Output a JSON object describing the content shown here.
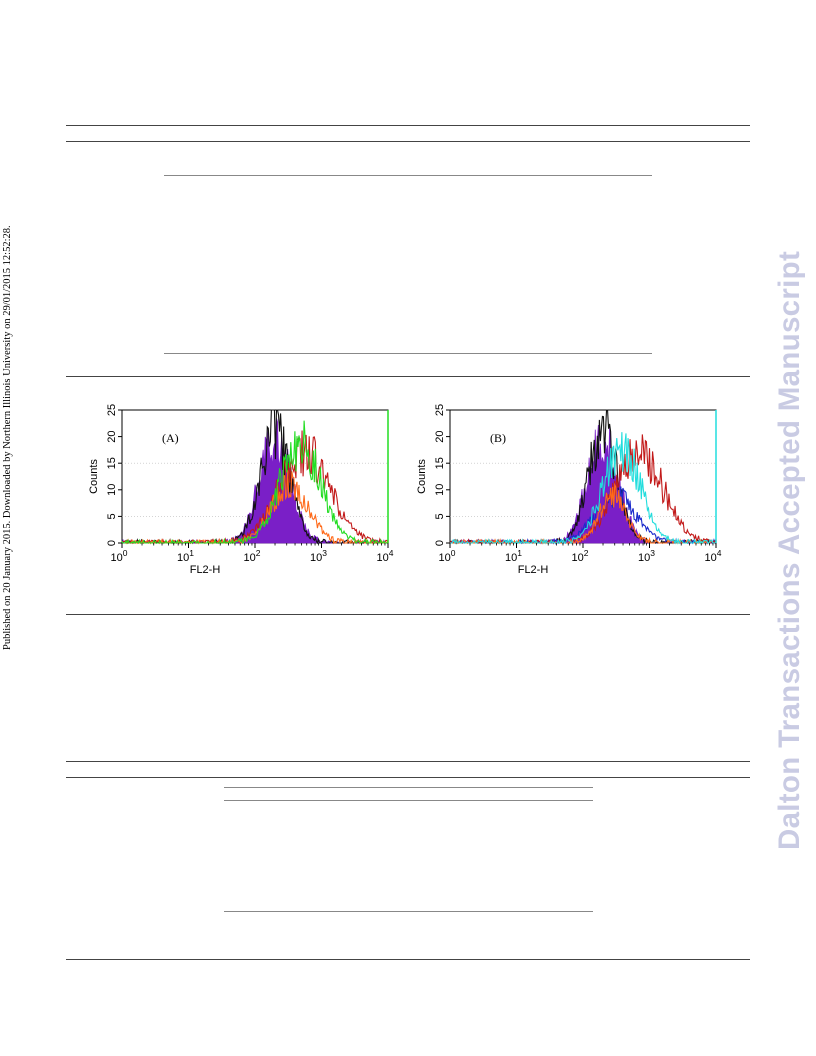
{
  "side_note": "Published on 20 January 2015. Downloaded by Northern Illinois University on 29/01/2015 12:52:28.",
  "watermark": "Dalton Transactions Accepted Manuscript",
  "chart_data": [
    {
      "type": "area",
      "panel_label": "(A)",
      "xlabel": "FL2-H",
      "ylabel": "Counts",
      "xscale": "log",
      "xlim": [
        1,
        10000
      ],
      "ylim": [
        0,
        25
      ],
      "xticks": [
        {
          "value": 1,
          "base": "10",
          "exp": "0"
        },
        {
          "value": 10,
          "base": "10",
          "exp": "1"
        },
        {
          "value": 100,
          "base": "10",
          "exp": "2"
        },
        {
          "value": 1000,
          "base": "10",
          "exp": "3"
        },
        {
          "value": 10000,
          "base": "10",
          "exp": "4"
        }
      ],
      "yticks": [
        {
          "value": 0,
          "label": "0"
        },
        {
          "value": 5,
          "label": "5"
        },
        {
          "value": 10,
          "label": "10"
        },
        {
          "value": 15,
          "label": "15"
        },
        {
          "value": 20,
          "label": "20"
        },
        {
          "value": 25,
          "label": "25"
        }
      ],
      "series": [
        {
          "color": "#7a1fc7",
          "fill": true,
          "center": 200,
          "spread": 0.24,
          "peak": 19
        },
        {
          "color": "#111111",
          "fill": false,
          "center": 200,
          "spread": 0.22,
          "peak": 21
        },
        {
          "color": "#c21a1a",
          "fill": false,
          "center": 550,
          "spread": 0.38,
          "peak": 17
        },
        {
          "color": "#ff6a1a",
          "fill": false,
          "center": 330,
          "spread": 0.28,
          "peak": 11
        },
        {
          "color": "#22dd22",
          "fill": false,
          "center": 480,
          "spread": 0.3,
          "peak": 19
        }
      ]
    },
    {
      "type": "area",
      "panel_label": "(B)",
      "xlabel": "FL2-H",
      "ylabel": "Counts",
      "xscale": "log",
      "xlim": [
        1,
        10000
      ],
      "ylim": [
        0,
        25
      ],
      "xticks": [
        {
          "value": 1,
          "base": "10",
          "exp": "0"
        },
        {
          "value": 10,
          "base": "10",
          "exp": "1"
        },
        {
          "value": 100,
          "base": "10",
          "exp": "2"
        },
        {
          "value": 1000,
          "base": "10",
          "exp": "3"
        },
        {
          "value": 10000,
          "base": "10",
          "exp": "4"
        }
      ],
      "yticks": [
        {
          "value": 0,
          "label": "0"
        },
        {
          "value": 5,
          "label": "5"
        },
        {
          "value": 10,
          "label": "10"
        },
        {
          "value": 15,
          "label": "15"
        },
        {
          "value": 20,
          "label": "20"
        },
        {
          "value": 25,
          "label": "25"
        }
      ],
      "series": [
        {
          "color": "#7a1fc7",
          "fill": true,
          "center": 200,
          "spread": 0.24,
          "peak": 19
        },
        {
          "color": "#111111",
          "fill": false,
          "center": 200,
          "spread": 0.22,
          "peak": 21
        },
        {
          "color": "#1a2acc",
          "fill": false,
          "center": 300,
          "spread": 0.3,
          "peak": 9
        },
        {
          "color": "#c21a1a",
          "fill": false,
          "center": 700,
          "spread": 0.36,
          "peak": 17
        },
        {
          "color": "#ff6a1a",
          "fill": false,
          "center": 280,
          "spread": 0.2,
          "peak": 9
        },
        {
          "color": "#22dddd",
          "fill": false,
          "center": 380,
          "spread": 0.28,
          "peak": 18
        }
      ]
    }
  ]
}
